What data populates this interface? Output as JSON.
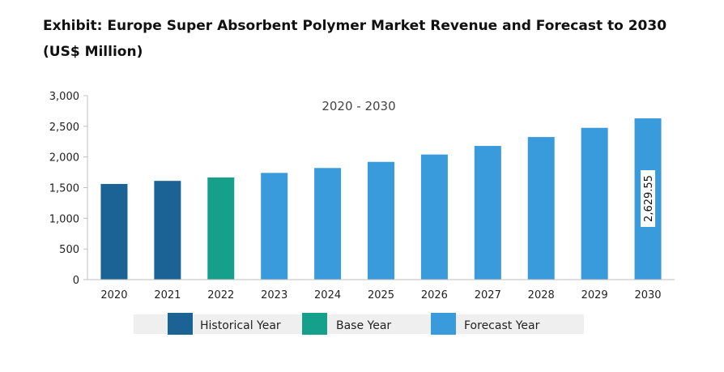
{
  "chart_data": {
    "type": "bar",
    "title": "Exhibit: Europe Super Absorbent Polymer Market Revenue and Forecast to 2030 (US$ Million)",
    "annotation": "2020 - 2030",
    "categories": [
      "2020",
      "2021",
      "2022",
      "2023",
      "2024",
      "2025",
      "2026",
      "2027",
      "2028",
      "2029",
      "2030"
    ],
    "values": [
      1560,
      1610,
      1665,
      1740,
      1820,
      1920,
      2040,
      2180,
      2325,
      2475,
      2629.55
    ],
    "bar_types": [
      "historical",
      "historical",
      "base",
      "forecast",
      "forecast",
      "forecast",
      "forecast",
      "forecast",
      "forecast",
      "forecast",
      "forecast"
    ],
    "ylim": [
      0,
      3000
    ],
    "yticks": [
      0,
      500,
      1000,
      1500,
      2000,
      2500,
      3000
    ],
    "ytick_labels": [
      "0",
      "500",
      "1,000",
      "1,500",
      "2,000",
      "2,500",
      "3,000"
    ],
    "data_label": {
      "index": 10,
      "text": "2,629.55"
    },
    "xlabel": "",
    "ylabel": "",
    "grid": false,
    "legend_position": "bottom",
    "legend": [
      {
        "key": "historical",
        "label": "Historical Year",
        "color": "#1b6394"
      },
      {
        "key": "base",
        "label": "Base Year",
        "color": "#14a08a"
      },
      {
        "key": "forecast",
        "label": "Forecast Year",
        "color": "#3a9bdc"
      }
    ]
  }
}
